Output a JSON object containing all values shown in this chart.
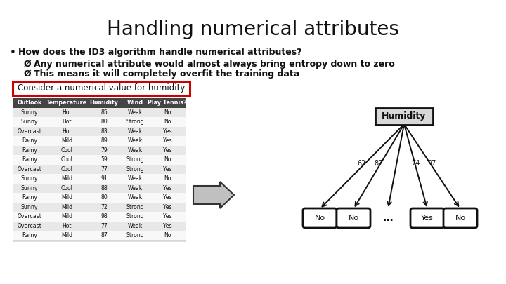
{
  "title": "Handling numerical attributes",
  "bullet_text": "How does the ID3 algorithm handle numerical attributes?",
  "sub_bullets": [
    "Any numerical attribute would almost always bring entropy down to zero",
    "This means it will completely overfit the training data"
  ],
  "box_label": "Consider a numerical value for humidity",
  "table_headers": [
    "Outlook",
    "Temperature",
    "Humidity",
    "Wind",
    "Play Tennis?"
  ],
  "table_rows": [
    [
      "Sunny",
      "Hot",
      "85",
      "Weak",
      "No"
    ],
    [
      "Sunny",
      "Hot",
      "80",
      "Strong",
      "No"
    ],
    [
      "Overcast",
      "Hot",
      "83",
      "Weak",
      "Yes"
    ],
    [
      "Rainy",
      "Mild",
      "89",
      "Weak",
      "Yes"
    ],
    [
      "Rainy",
      "Cool",
      "79",
      "Weak",
      "Yes"
    ],
    [
      "Rainy",
      "Cool",
      "59",
      "Strong",
      "No"
    ],
    [
      "Overcast",
      "Cool",
      "77",
      "Strong",
      "Yes"
    ],
    [
      "Sunny",
      "Mild",
      "91",
      "Weak",
      "No"
    ],
    [
      "Sunny",
      "Cool",
      "88",
      "Weak",
      "Yes"
    ],
    [
      "Rainy",
      "Mild",
      "80",
      "Weak",
      "Yes"
    ],
    [
      "Sunny",
      "Mild",
      "72",
      "Strong",
      "Yes"
    ],
    [
      "Overcast",
      "Mild",
      "98",
      "Strong",
      "Yes"
    ],
    [
      "Overcast",
      "Hot",
      "77",
      "Weak",
      "Yes"
    ],
    [
      "Rainy",
      "Mild",
      "87",
      "Strong",
      "No"
    ]
  ],
  "tree_root": "Humidity",
  "tree_thresholds": [
    "62",
    "87",
    "",
    "74",
    "97"
  ],
  "tree_leaves": [
    "No",
    "No",
    "...",
    "Yes",
    "No"
  ],
  "bg_color": "#ffffff",
  "title_fontsize": 20,
  "header_bg": "#444444",
  "header_fg": "#ffffff",
  "row_bg_even": "#e8e8e8",
  "row_bg_odd": "#f8f8f8"
}
